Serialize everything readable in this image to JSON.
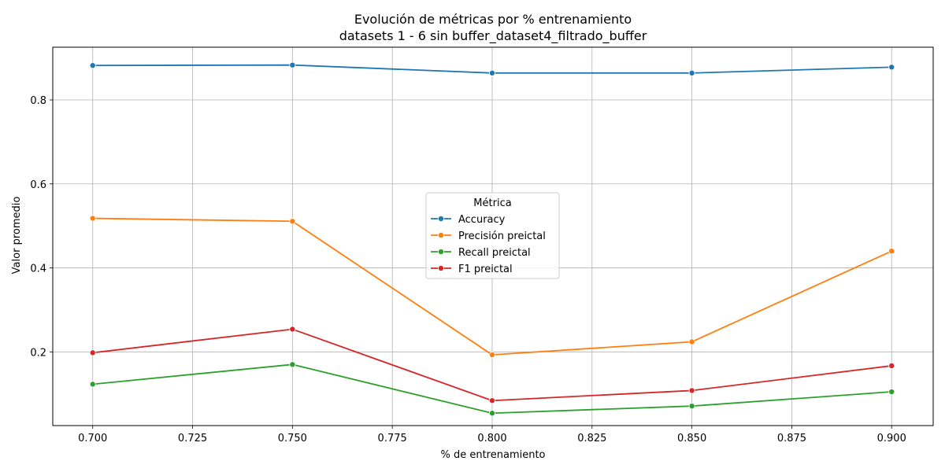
{
  "chart_data": {
    "type": "line",
    "title_line1": "Evolución de métricas por % entrenamiento",
    "title_line2": "datasets 1 - 6 sin buffer_dataset4_filtrado_buffer",
    "xlabel": "% de entrenamiento",
    "ylabel": "Valor promedio",
    "x": [
      0.7,
      0.75,
      0.8,
      0.85,
      0.9
    ],
    "xlim": [
      0.69,
      0.9104
    ],
    "ylim": [
      0.0245,
      0.9255
    ],
    "xticks": [
      "0.700",
      "0.725",
      "0.750",
      "0.775",
      "0.800",
      "0.825",
      "0.850",
      "0.875",
      "0.900"
    ],
    "xtick_values": [
      0.7,
      0.725,
      0.75,
      0.775,
      0.8,
      0.825,
      0.85,
      0.875,
      0.9
    ],
    "yticks": [
      "0.2",
      "0.4",
      "0.6",
      "0.8"
    ],
    "ytick_values": [
      0.2,
      0.4,
      0.6,
      0.8
    ],
    "grid": true,
    "legend": {
      "title": "Métrica",
      "placement": "center"
    },
    "series": [
      {
        "name": "Accuracy",
        "color": "#1f77b4",
        "values": [
          0.882,
          0.883,
          0.864,
          0.864,
          0.878
        ]
      },
      {
        "name": "Precisión preictal",
        "color": "#ff7f0e",
        "values": [
          0.518,
          0.511,
          0.193,
          0.224,
          0.44
        ]
      },
      {
        "name": "Recall preictal",
        "color": "#2ca02c",
        "values": [
          0.123,
          0.17,
          0.054,
          0.071,
          0.105
        ]
      },
      {
        "name": "F1 preictal",
        "color": "#d62728",
        "values": [
          0.198,
          0.254,
          0.084,
          0.108,
          0.167
        ]
      }
    ]
  }
}
